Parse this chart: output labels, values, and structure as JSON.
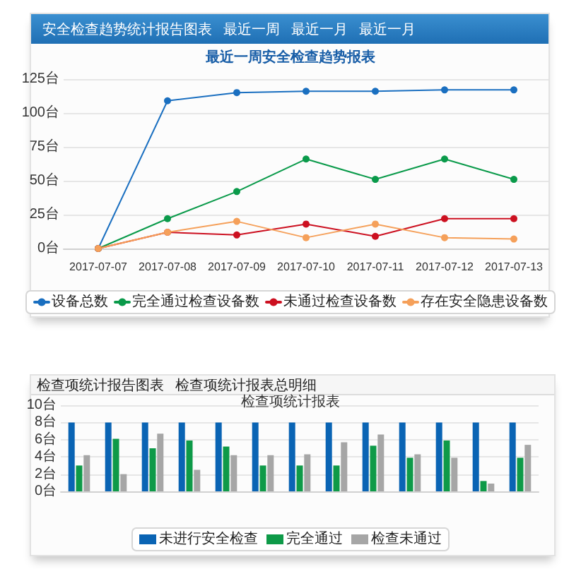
{
  "chart_data": [
    {
      "type": "line",
      "title": "最近一周安全检查趋势报表",
      "annotations": [
        "安全检查趋势统计报告图表",
        "最近一周",
        "最近一月",
        "最近一月"
      ],
      "categories": [
        "2017-07-07",
        "2017-07-08",
        "2017-07-09",
        "2017-07-10",
        "2017-07-11",
        "2017-07-12",
        "2017-07-13"
      ],
      "series": [
        {
          "name": "设备总数",
          "color": "#1a6fc0",
          "values": [
            0,
            109,
            115,
            116,
            116,
            117,
            117
          ]
        },
        {
          "name": "完全通过检查设备数",
          "color": "#0a9a4a",
          "values": [
            0,
            22,
            42,
            66,
            51,
            66,
            51
          ]
        },
        {
          "name": "未通过检查设备数",
          "color": "#cc1020",
          "values": [
            0,
            12,
            10,
            18,
            9,
            22,
            22
          ]
        },
        {
          "name": "存在安全隐患设备数",
          "color": "#f5a05a",
          "values": [
            0,
            12,
            20,
            8,
            18,
            8,
            7
          ]
        }
      ],
      "ylim": [
        0,
        125
      ],
      "yticks": [
        {
          "value": 0,
          "label": "0台"
        },
        {
          "value": 25,
          "label": "25台"
        },
        {
          "value": 50,
          "label": "50台"
        },
        {
          "value": 75,
          "label": "75台"
        },
        {
          "value": 100,
          "label": "100台"
        },
        {
          "value": 125,
          "label": "125台"
        }
      ],
      "grid": "y",
      "legend": "bottom",
      "marker": "circle"
    },
    {
      "type": "bar",
      "title": "检查项统计报表",
      "annotations": [
        "检查项统计报告图表",
        "检查项统计报表总明细"
      ],
      "categories": [
        null,
        null,
        null,
        null,
        null,
        null,
        null,
        null,
        null,
        null,
        null,
        null,
        null
      ],
      "series": [
        {
          "name": "未进行安全检查",
          "color": "#0a64b4",
          "values": [
            8,
            8,
            8,
            8,
            8,
            8,
            8,
            8,
            8,
            8,
            8,
            8,
            8
          ]
        },
        {
          "name": "完全通过",
          "color": "#0e9a48",
          "values": [
            3,
            6.1,
            5,
            5.9,
            5.2,
            3,
            3,
            3,
            5.3,
            3.9,
            5.9,
            1.2,
            3.9
          ]
        },
        {
          "name": "检查未通过",
          "color": "#a6a6a6",
          "values": [
            4.2,
            2,
            6.7,
            2.5,
            4.2,
            4.2,
            4.3,
            5.7,
            6.6,
            4.3,
            3.9,
            0.9,
            5.4
          ]
        }
      ],
      "ylim": [
        0,
        10
      ],
      "yticks": [
        {
          "value": 0,
          "label": "0台"
        },
        {
          "value": 2,
          "label": "2台"
        },
        {
          "value": 4,
          "label": "4台"
        },
        {
          "value": 6,
          "label": "6台"
        },
        {
          "value": 8,
          "label": "8台"
        },
        {
          "value": 10,
          "label": "10台"
        }
      ],
      "grid": "y",
      "legend": "bottom"
    }
  ]
}
